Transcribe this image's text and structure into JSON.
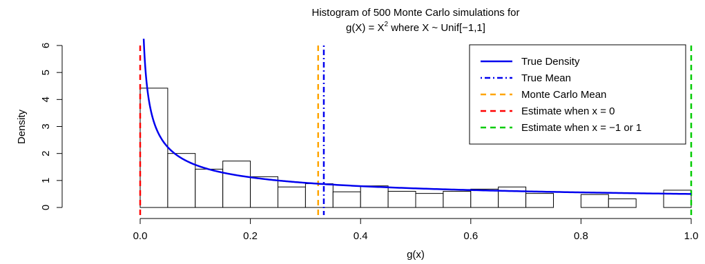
{
  "chart_data": {
    "type": "bar",
    "title_line1": "Histogram of 500 Monte Carlo simulations for",
    "title_line2": {
      "prefix": "g(X) = X",
      "superscript": "2",
      "suffix": " where X ~ Unif[−1,1]"
    },
    "xlabel": "g(x)",
    "ylabel": "Density",
    "xlim": [
      0,
      1
    ],
    "ylim": [
      0,
      6
    ],
    "x_ticks": [
      0.0,
      0.2,
      0.4,
      0.6,
      0.8,
      1.0
    ],
    "x_tick_labels": [
      "0.0",
      "0.2",
      "0.4",
      "0.6",
      "0.8",
      "1.0"
    ],
    "y_ticks": [
      0,
      1,
      2,
      3,
      4,
      5,
      6
    ],
    "y_tick_labels": [
      "0",
      "1",
      "2",
      "3",
      "4",
      "5",
      "6"
    ],
    "bin_width": 0.05,
    "bins": [
      {
        "from": 0.0,
        "to": 0.05,
        "density": 4.42
      },
      {
        "from": 0.05,
        "to": 0.1,
        "density": 2.0
      },
      {
        "from": 0.1,
        "to": 0.15,
        "density": 1.42
      },
      {
        "from": 0.15,
        "to": 0.2,
        "density": 1.72
      },
      {
        "from": 0.2,
        "to": 0.25,
        "density": 1.14
      },
      {
        "from": 0.25,
        "to": 0.3,
        "density": 0.76
      },
      {
        "from": 0.3,
        "to": 0.35,
        "density": 0.88
      },
      {
        "from": 0.35,
        "to": 0.4,
        "density": 0.58
      },
      {
        "from": 0.4,
        "to": 0.45,
        "density": 0.8
      },
      {
        "from": 0.45,
        "to": 0.5,
        "density": 0.6
      },
      {
        "from": 0.5,
        "to": 0.55,
        "density": 0.52
      },
      {
        "from": 0.55,
        "to": 0.6,
        "density": 0.6
      },
      {
        "from": 0.6,
        "to": 0.65,
        "density": 0.68
      },
      {
        "from": 0.65,
        "to": 0.7,
        "density": 0.76
      },
      {
        "from": 0.7,
        "to": 0.75,
        "density": 0.52
      },
      {
        "from": 0.75,
        "to": 0.8,
        "density": 0.0
      },
      {
        "from": 0.8,
        "to": 0.85,
        "density": 0.48
      },
      {
        "from": 0.85,
        "to": 0.9,
        "density": 0.32
      },
      {
        "from": 0.9,
        "to": 0.95,
        "density": 0.0
      },
      {
        "from": 0.95,
        "to": 1.0,
        "density": 0.64
      }
    ],
    "density_curve": {
      "name": "True Density",
      "formula": "1/(2*sqrt(x))",
      "color": "#0000EE"
    },
    "vertical_lines": [
      {
        "name": "True Mean",
        "x": 0.3333,
        "color": "#0000EE",
        "dash": "dotdash"
      },
      {
        "name": "Monte Carlo Mean",
        "x": 0.323,
        "color": "#FFA500",
        "dash": "dashed"
      },
      {
        "name": "Estimate when x = 0",
        "x": 0.0,
        "color": "#FF0000",
        "dash": "dashed"
      },
      {
        "name": "Estimate when x = −1 or 1",
        "x": 1.0,
        "color": "#00CC00",
        "dash": "dashed"
      }
    ],
    "legend": {
      "position": "top-right",
      "entries": [
        {
          "label": "True Density",
          "color": "#0000EE",
          "dash": "solid"
        },
        {
          "label": "True Mean",
          "color": "#0000EE",
          "dash": "dotdash"
        },
        {
          "label": "Monte Carlo Mean",
          "color": "#FFA500",
          "dash": "dashed"
        },
        {
          "label": "Estimate when x = 0",
          "color": "#FF0000",
          "dash": "dashed"
        },
        {
          "label": "Estimate when x = −1 or 1",
          "color": "#00CC00",
          "dash": "dashed"
        }
      ]
    }
  }
}
